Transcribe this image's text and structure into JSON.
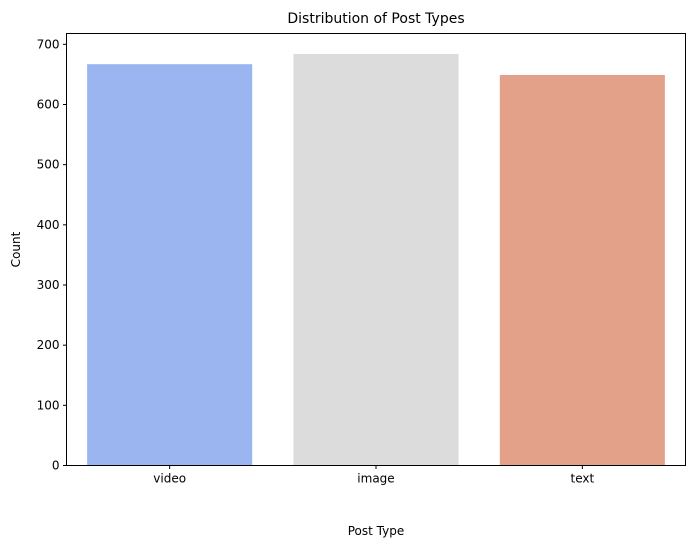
{
  "chart_data": {
    "type": "bar",
    "title": "Distribution of Post Types",
    "xlabel": "Post Type",
    "ylabel": "Count",
    "categories": [
      "video",
      "image",
      "text"
    ],
    "values": [
      667,
      684,
      649
    ],
    "colors": [
      "#9bb5f1",
      "#dcdcdc",
      "#e3a18a"
    ],
    "ylim": [
      0,
      718
    ],
    "yticks": [
      0,
      100,
      200,
      300,
      400,
      500,
      600,
      700
    ],
    "grid": false,
    "legend": "none"
  }
}
